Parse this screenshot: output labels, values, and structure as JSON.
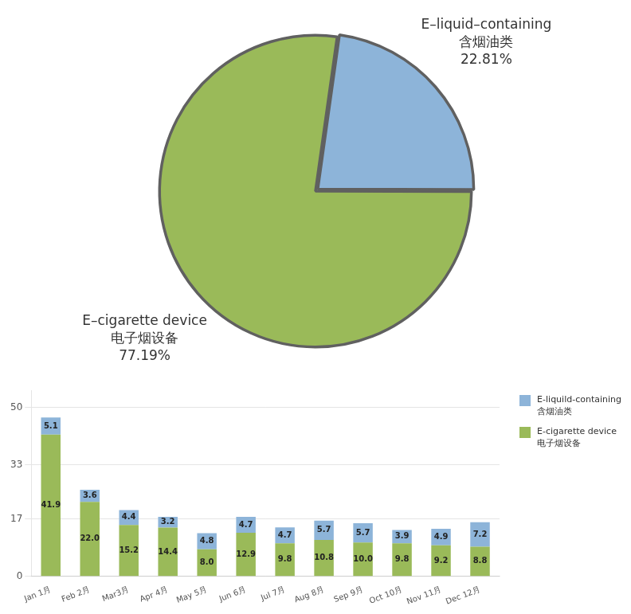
{
  "chart_data": [
    {
      "type": "pie",
      "categories": [
        "E–liquid–containing\n含烟油类",
        "E–cigarette device\n电子烟设备"
      ],
      "values": [
        22.81,
        77.19
      ],
      "value_labels": [
        "22.81%",
        "77.19%"
      ],
      "colors": [
        "#8db4d9",
        "#9aba59"
      ],
      "data_labels": true
    },
    {
      "type": "bar",
      "stacked": true,
      "categories": [
        "Jan 1月",
        "Feb 2月",
        "Mar3月",
        "Apr 4月",
        "May 5月",
        "Jun 6月",
        "Jul 7月",
        "Aug 8月",
        "Sep 9月",
        "Oct 10月",
        "Nov 11月",
        "Dec 12月"
      ],
      "series": [
        {
          "name": "E-cigarette device\n电子烟设备",
          "color": "#9aba59",
          "values": [
            41.9,
            22.0,
            15.2,
            14.4,
            8.0,
            12.9,
            9.8,
            10.8,
            10.0,
            9.8,
            9.2,
            8.8
          ],
          "value_labels": [
            "41.9",
            "22.0",
            "15.2",
            "14.4",
            "8.0",
            "12.9",
            "9.8",
            "10.8",
            "10.0",
            "9.8",
            "9.2",
            "8.8"
          ]
        },
        {
          "name": "E-liquild-containing\n含烟油类",
          "color": "#8db4d9",
          "values": [
            5.1,
            3.6,
            4.4,
            3.2,
            4.8,
            4.7,
            4.7,
            5.7,
            5.7,
            3.9,
            4.9,
            7.2
          ],
          "value_labels": [
            "5.1",
            "3.6",
            "4.4",
            "3.2",
            "4.8",
            "4.7",
            "4.7",
            "5.7",
            "5.7",
            "3.9",
            "4.9",
            "7.2"
          ]
        }
      ],
      "ylim": [
        0,
        55
      ],
      "yticks": [
        0,
        17,
        33,
        50
      ],
      "grid": true,
      "legend": "upper right",
      "data_labels": true
    }
  ]
}
